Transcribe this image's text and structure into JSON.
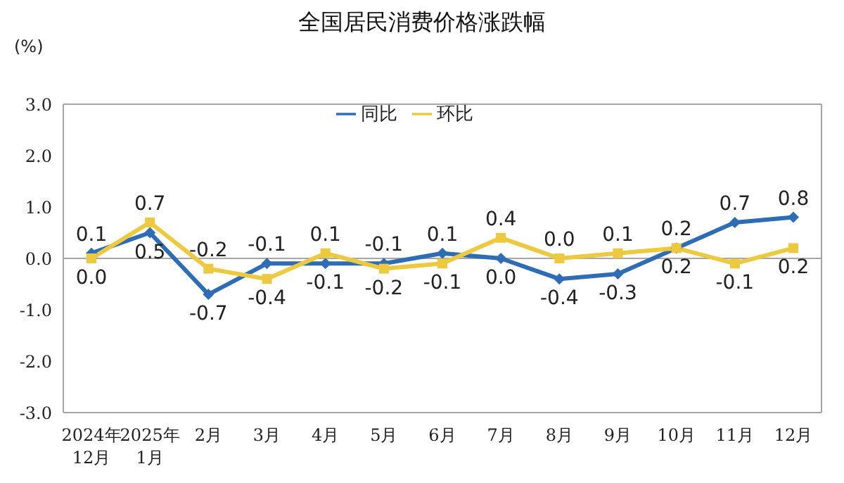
{
  "chart_data": {
    "type": "line",
    "title": "全国居民消费价格涨跌幅",
    "ylabel": "(%)",
    "categories": [
      "2024年\n12月",
      "2025年\n1月",
      "2月",
      "3月",
      "4月",
      "5月",
      "6月",
      "7月",
      "8月",
      "9月",
      "10月",
      "11月",
      "12月"
    ],
    "series": [
      {
        "name": "同比",
        "color": "#2e6db5",
        "marker": "diamond",
        "values": [
          0.1,
          0.5,
          -0.7,
          -0.1,
          -0.1,
          -0.1,
          0.1,
          0.0,
          -0.4,
          -0.3,
          0.2,
          0.7,
          0.8
        ],
        "value_labels": [
          "0.1",
          "0.5",
          "-0.7",
          "-0.1",
          "-0.1",
          "-0.1",
          "0.1",
          "0.0",
          "-0.4",
          "-0.3",
          "0.2",
          "0.7",
          "0.8"
        ]
      },
      {
        "name": "环比",
        "color": "#ecc93f",
        "marker": "square",
        "values": [
          0.0,
          0.7,
          -0.2,
          -0.4,
          0.1,
          -0.2,
          -0.1,
          0.4,
          0.0,
          0.1,
          0.2,
          -0.1,
          0.2
        ],
        "value_labels": [
          "0.0",
          "0.7",
          "-0.2",
          "-0.4",
          "0.1",
          "-0.2",
          "-0.1",
          "0.4",
          "0.0",
          "0.1",
          "0.2",
          "-0.1",
          "0.2"
        ]
      }
    ],
    "ylim": [
      -3,
      3
    ],
    "yticks": [
      {
        "value": -3,
        "label": "-3.0"
      },
      {
        "value": -2,
        "label": "-2.0"
      },
      {
        "value": -1,
        "label": "-1.0"
      },
      {
        "value": 0,
        "label": "0.0"
      },
      {
        "value": 1,
        "label": "1.0"
      },
      {
        "value": 2,
        "label": "2.0"
      },
      {
        "value": 3,
        "label": "3.0"
      }
    ],
    "ref_lines": [
      {
        "axis": "y",
        "value": 0,
        "color": "#a6a6a6"
      }
    ],
    "legend": "top",
    "grid": false,
    "line_style": "solid"
  }
}
